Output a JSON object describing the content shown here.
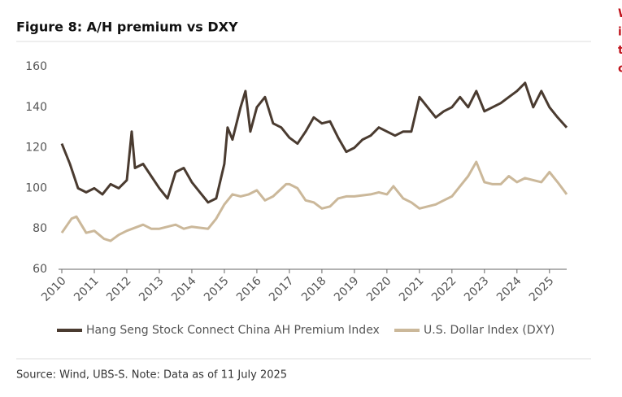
{
  "chart_data": {
    "type": "line",
    "title": "Figure 8: A/H premium vs DXY",
    "source": "Source: Wind, UBS-S. Note: Data as of 11 July 2025",
    "side_text": [
      "W",
      "i",
      "t",
      "c"
    ],
    "xlim": [
      2010,
      2025.53
    ],
    "xticks": [
      2010,
      2011,
      2012,
      2013,
      2014,
      2015,
      2016,
      2017,
      2018,
      2019,
      2020,
      2021,
      2022,
      2023,
      2024,
      2025
    ],
    "ylim": [
      60,
      160
    ],
    "yticks": [
      60,
      80,
      100,
      120,
      140,
      160
    ],
    "grid": false,
    "legend": "bottom",
    "series": [
      {
        "name": "Hang Seng Stock Connect China AH Premium Index",
        "color": "#4a3b30",
        "x": [
          2010.0,
          2010.25,
          2010.5,
          2010.75,
          2011.0,
          2011.25,
          2011.5,
          2011.75,
          2012.0,
          2012.15,
          2012.25,
          2012.5,
          2012.75,
          2013.0,
          2013.25,
          2013.5,
          2013.75,
          2014.0,
          2014.25,
          2014.5,
          2014.75,
          2015.0,
          2015.1,
          2015.25,
          2015.5,
          2015.65,
          2015.8,
          2016.0,
          2016.25,
          2016.5,
          2016.75,
          2017.0,
          2017.25,
          2017.5,
          2017.75,
          2018.0,
          2018.25,
          2018.5,
          2018.75,
          2019.0,
          2019.25,
          2019.5,
          2019.75,
          2020.0,
          2020.25,
          2020.5,
          2020.75,
          2021.0,
          2021.25,
          2021.5,
          2021.75,
          2022.0,
          2022.25,
          2022.5,
          2022.75,
          2023.0,
          2023.25,
          2023.5,
          2023.75,
          2024.0,
          2024.25,
          2024.5,
          2024.75,
          2025.0,
          2025.25,
          2025.53
        ],
        "values": [
          122,
          112,
          100,
          98,
          100,
          97,
          102,
          100,
          104,
          128,
          110,
          112,
          106,
          100,
          95,
          108,
          110,
          103,
          98,
          93,
          95,
          112,
          130,
          124,
          140,
          148,
          128,
          140,
          145,
          132,
          130,
          125,
          122,
          128,
          135,
          132,
          133,
          125,
          118,
          120,
          124,
          126,
          130,
          128,
          126,
          128,
          128,
          145,
          140,
          135,
          138,
          140,
          145,
          140,
          148,
          138,
          140,
          142,
          145,
          148,
          152,
          140,
          148,
          140,
          135,
          130
        ]
      },
      {
        "name": "U.S. Dollar Index (DXY)",
        "color": "#cbb89a",
        "x": [
          2010.0,
          2010.3,
          2010.45,
          2010.75,
          2011.0,
          2011.3,
          2011.5,
          2011.75,
          2012.0,
          2012.5,
          2012.75,
          2013.0,
          2013.5,
          2013.75,
          2014.0,
          2014.5,
          2014.75,
          2015.0,
          2015.25,
          2015.5,
          2015.75,
          2016.0,
          2016.25,
          2016.5,
          2016.9,
          2017.0,
          2017.25,
          2017.5,
          2017.75,
          2018.0,
          2018.25,
          2018.5,
          2018.75,
          2019.0,
          2019.5,
          2019.75,
          2020.0,
          2020.2,
          2020.5,
          2020.75,
          2021.0,
          2021.25,
          2021.5,
          2021.75,
          2022.0,
          2022.25,
          2022.5,
          2022.75,
          2023.0,
          2023.25,
          2023.5,
          2023.75,
          2024.0,
          2024.25,
          2024.5,
          2024.75,
          2025.0,
          2025.25,
          2025.53
        ],
        "values": [
          78,
          85,
          86,
          78,
          79,
          75,
          74,
          77,
          79,
          82,
          80,
          80,
          82,
          80,
          81,
          80,
          85,
          92,
          97,
          96,
          97,
          99,
          94,
          96,
          102,
          102,
          100,
          94,
          93,
          90,
          91,
          95,
          96,
          96,
          97,
          98,
          97,
          101,
          95,
          93,
          90,
          91,
          92,
          94,
          96,
          101,
          106,
          113,
          103,
          102,
          102,
          106,
          103,
          105,
          104,
          103,
          108,
          103,
          97
        ]
      }
    ]
  }
}
